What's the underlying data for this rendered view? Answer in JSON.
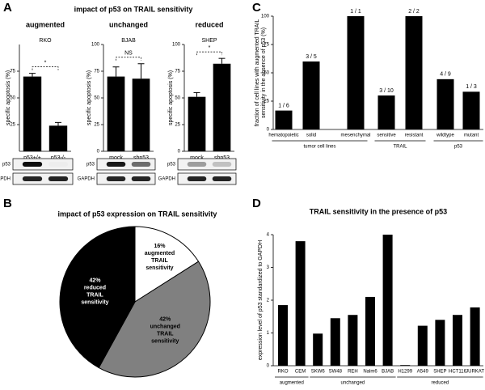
{
  "panels": [
    {
      "label": "A",
      "title": "impact of p53 on TRAIL sensitivity"
    },
    {
      "label": "B"
    },
    {
      "label": "C"
    },
    {
      "label": "D"
    }
  ],
  "chart_data": [
    {
      "type": "bar",
      "title": "augmented",
      "subtitle": "RKO",
      "ylabel": "specific apoptosis (%)",
      "categories": [
        "p53+/+",
        "p53-/-"
      ],
      "values": [
        70,
        24
      ],
      "errors": [
        3,
        3
      ],
      "color": "#000000",
      "ylim": [
        0,
        100
      ],
      "yticks": [
        25,
        50,
        75
      ],
      "annotation": "*",
      "blot_labels": [
        "p53",
        "GAPDH"
      ]
    },
    {
      "type": "bar",
      "title": "unchanged",
      "subtitle": "BJAB",
      "ylabel": "specific apoptosis (%)",
      "categories": [
        "mock",
        "shp53"
      ],
      "values": [
        70,
        68
      ],
      "errors": [
        9,
        14
      ],
      "color": "#000000",
      "ylim": [
        0,
        100
      ],
      "yticks": [
        0,
        25,
        50,
        75,
        100
      ],
      "annotation": "NS",
      "blot_labels": [
        "p53",
        "GAPDH"
      ]
    },
    {
      "type": "bar",
      "title": "reduced",
      "subtitle": "SHEP",
      "ylabel": "specific apoptosis (%)",
      "categories": [
        "mock",
        "shp53"
      ],
      "values": [
        51,
        82
      ],
      "errors": [
        4,
        5
      ],
      "color": "#000000",
      "ylim": [
        0,
        100
      ],
      "yticks": [
        0,
        25,
        50,
        75,
        100
      ],
      "annotation": "*",
      "blot_labels": [
        "p53",
        "GAPDH"
      ]
    },
    {
      "type": "pie",
      "title": "impact of p53 expression on TRAIL sensitivity",
      "values": [
        16,
        42,
        42
      ],
      "value_labels": [
        "16%",
        "42%",
        "42%"
      ],
      "labels": [
        [
          "augmented",
          "TRAIL",
          "sensitivity"
        ],
        [
          "unchanged",
          "TRAIL",
          "sensitivity"
        ],
        [
          "reduced",
          "TRAIL",
          "sensitivity"
        ]
      ],
      "colors": [
        "#ffffff",
        "#808080",
        "#000000"
      ]
    },
    {
      "type": "grouped-bar",
      "ylabel": [
        "fraction of cell lines with augmented TRAIL",
        "sensitivity in the absence of p53 (%)"
      ],
      "color": "#000000",
      "ylim": [
        0,
        100
      ],
      "yticks": [
        0,
        25,
        50,
        75,
        100
      ],
      "groups": [
        {
          "name": "tumor cell lines",
          "categories": [
            "hematopoietic",
            "solid",
            "mesenchymal"
          ],
          "values": [
            16.7,
            60,
            100
          ],
          "value_labels": [
            "1 / 6",
            "3 / 5",
            "1 / 1"
          ]
        },
        {
          "name": "TRAIL",
          "categories": [
            "sensitive",
            "resistant"
          ],
          "values": [
            30,
            100
          ],
          "value_labels": [
            "3 / 10",
            "2 / 2"
          ]
        },
        {
          "name": "p53",
          "categories": [
            "wildtype",
            "mutant"
          ],
          "values": [
            44.4,
            33.3
          ],
          "value_labels": [
            "4 / 9",
            "1 / 3"
          ]
        }
      ]
    },
    {
      "type": "grouped-bar",
      "title": "TRAIL sensitivity in the presence of p53",
      "ylabel": "expression level of p53 standardized to GAPDH",
      "color": "#000000",
      "ylim": [
        0,
        4
      ],
      "yticks": [
        0,
        1,
        2,
        3,
        4
      ],
      "groups": [
        {
          "name": "augmented",
          "categories": [
            "RKO",
            "CEM"
          ],
          "values": [
            1.85,
            3.8
          ]
        },
        {
          "name": "unchanged",
          "categories": [
            "SKW6",
            "SW48",
            "REH",
            "Nalm6",
            "BJAB"
          ],
          "values": [
            0.98,
            1.45,
            1.55,
            2.1,
            4.0
          ]
        },
        {
          "name": "reduced",
          "categories": [
            "H1299",
            "A549",
            "SHEP",
            "HCT116",
            "JURKAT"
          ],
          "values": [
            0.02,
            1.22,
            1.4,
            1.55,
            1.78
          ]
        }
      ]
    }
  ]
}
